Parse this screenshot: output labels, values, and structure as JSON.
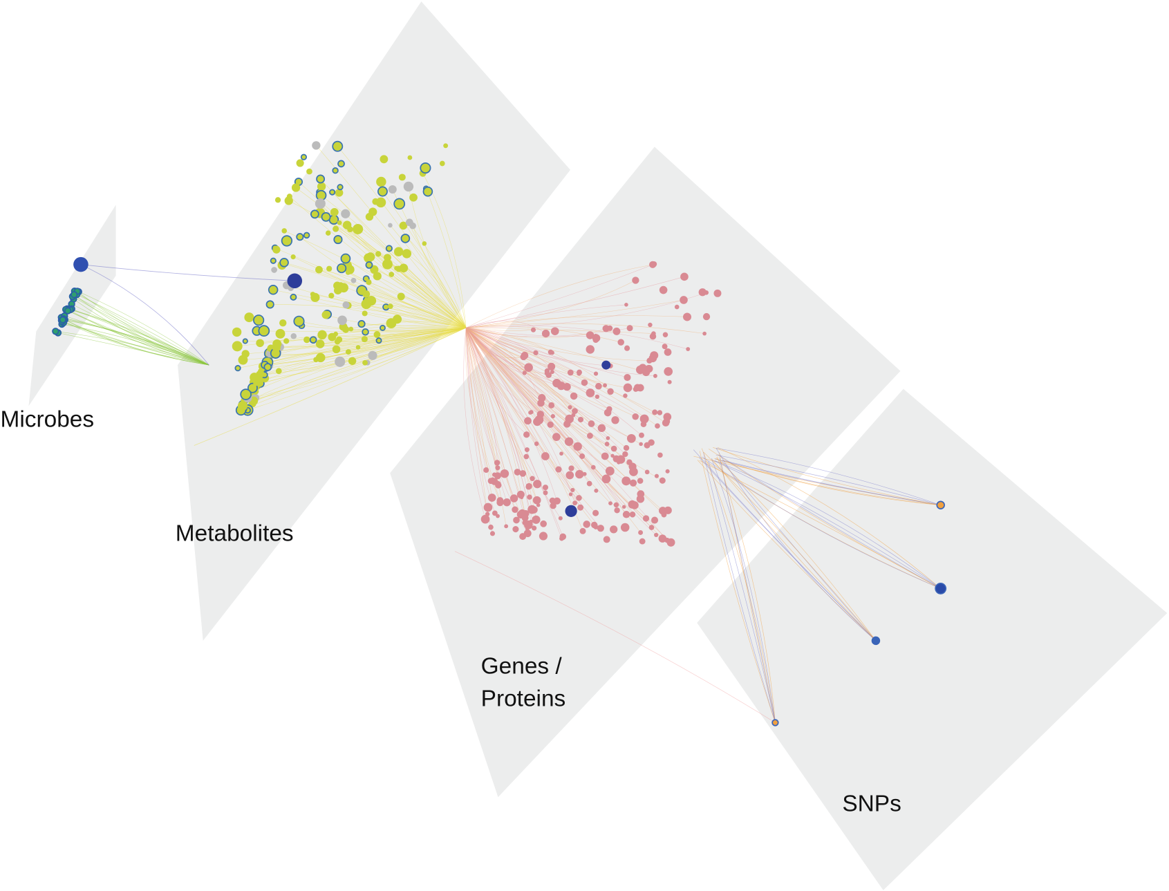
{
  "layers": [
    {
      "label_lines": [
        "Microbes"
      ]
    },
    {
      "label_lines": [
        "Metabolites"
      ]
    },
    {
      "label_lines": [
        "Genes /",
        "Proteins"
      ]
    },
    {
      "label_lines": [
        "SNPs"
      ]
    }
  ]
}
